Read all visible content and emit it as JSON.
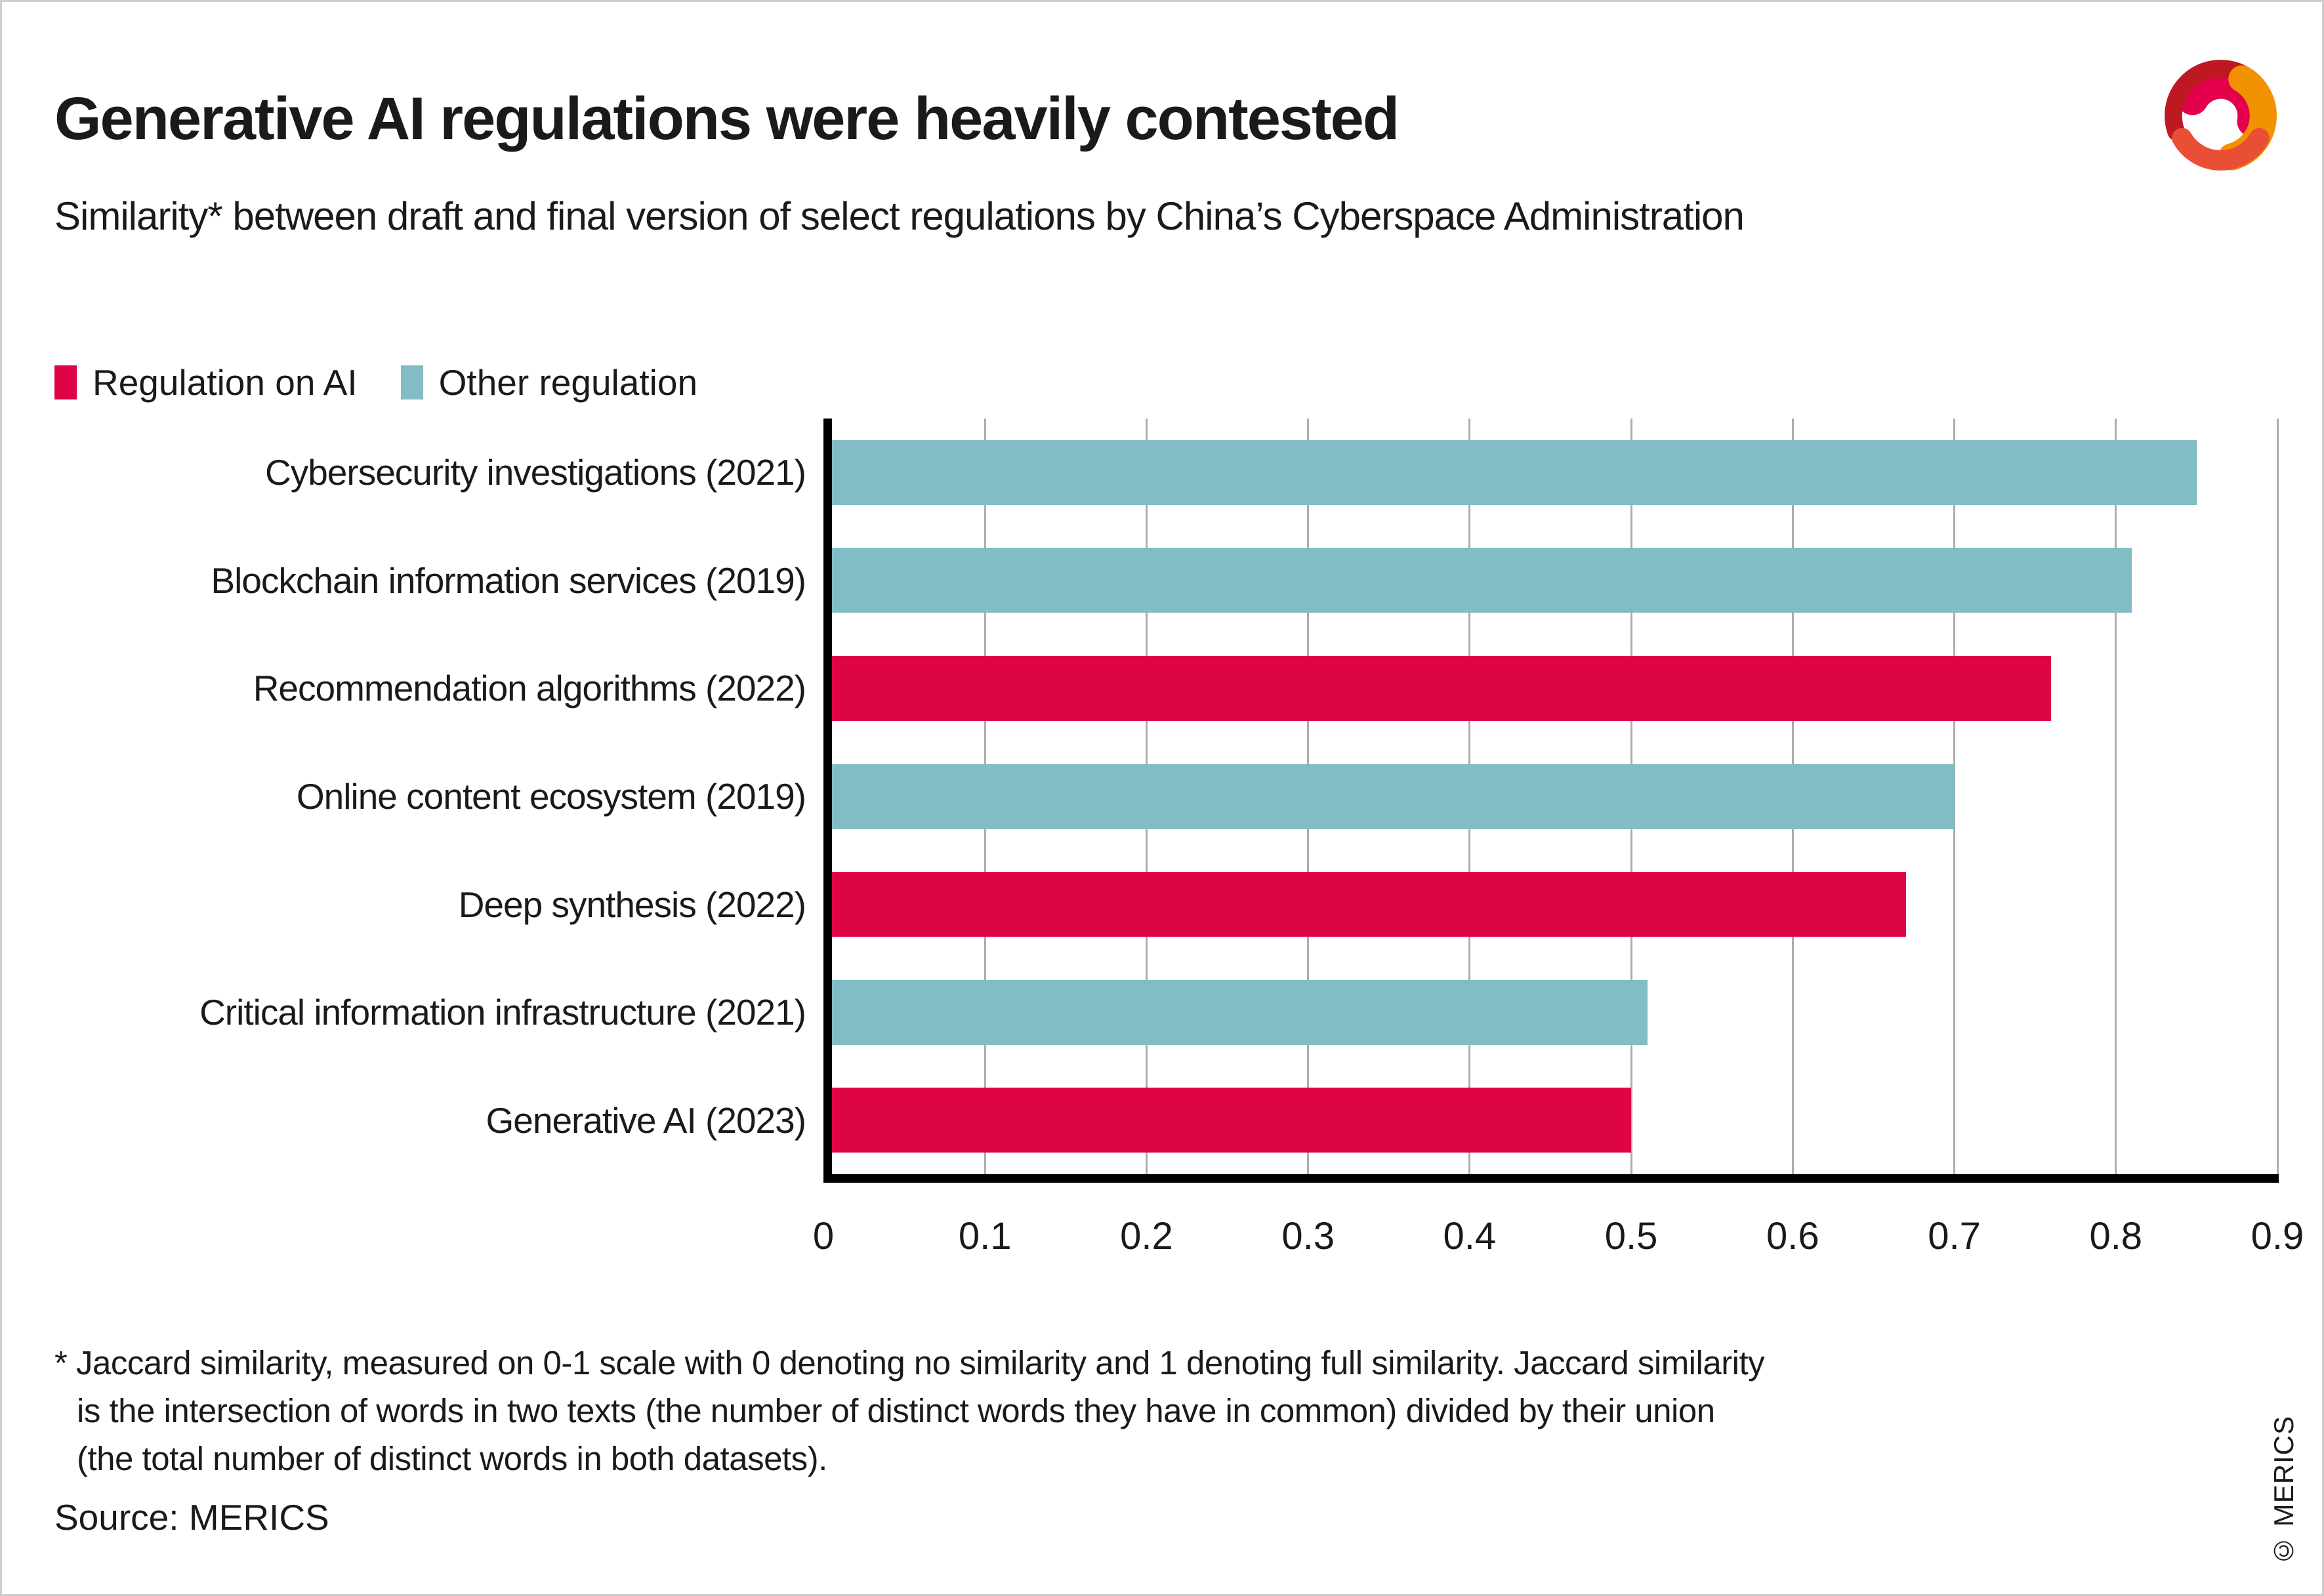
{
  "header": {
    "title": "Generative AI regulations were heavily contested",
    "subtitle": "Similarity* between draft and final version of select regulations by China’s Cyberspace Administration"
  },
  "legend": {
    "items": [
      {
        "label": "Regulation on AI",
        "color": "#de0546"
      },
      {
        "label": "Other regulation",
        "color": "#82bdc5"
      }
    ]
  },
  "chart_data": {
    "type": "bar",
    "orientation": "horizontal",
    "title": "Generative AI regulations were heavily contested",
    "subtitle": "Similarity* between draft and final version of select regulations by China’s Cyberspace Administration",
    "categories": [
      "Cybersecurity investigations (2021)",
      "Blockchain information services (2019)",
      "Recommendation algorithms (2022)",
      "Online content ecosystem (2019)",
      "Deep synthesis (2022)",
      "Critical information infrastructure (2021)",
      "Generative AI (2023)"
    ],
    "values": [
      0.85,
      0.81,
      0.76,
      0.7,
      0.67,
      0.51,
      0.5
    ],
    "groups": [
      "Other regulation",
      "Other regulation",
      "Regulation on AI",
      "Other regulation",
      "Regulation on AI",
      "Other regulation",
      "Regulation on AI"
    ],
    "xlabel": "",
    "ylabel": "",
    "xlim": [
      0,
      0.9
    ],
    "xticks": [
      "0",
      "0.1",
      "0.2",
      "0.3",
      "0.4",
      "0.5",
      "0.6",
      "0.7",
      "0.8",
      "0.9"
    ],
    "grid": "vertical-gridlines-on",
    "gridline_color": "#adadad",
    "axis_color": "#000000",
    "legend_position": "top-left"
  },
  "footnote": {
    "lines": [
      "* Jaccard similarity, measured on 0-1 scale with 0 denoting no similarity and 1 denoting full similarity. Jaccard similarity",
      "is the intersection of words in two texts (the number of distinct words they have in common) divided by their union",
      "(the total number of distinct words in both datasets)."
    ]
  },
  "source": "Source: MERICS",
  "copyright": "© MERICS",
  "logo": {
    "name": "merics-logo",
    "colors": {
      "crimson": "#e5004c",
      "darkred": "#be1823",
      "orange": "#f39200",
      "redorange": "#e94f35"
    }
  }
}
